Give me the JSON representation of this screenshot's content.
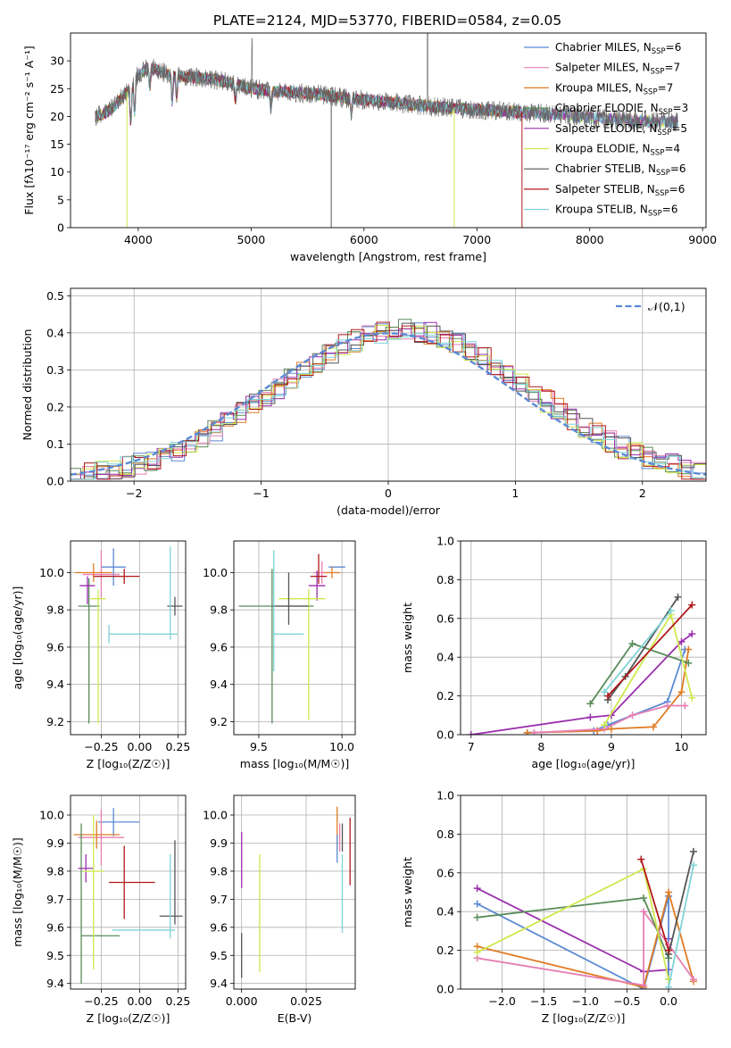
{
  "colors": {
    "ChM": "#5b8ad4",
    "SaM": "#e57fb3",
    "KrM": "#e07b24",
    "ChE": "#5a8c5a",
    "SaE": "#9b2fae",
    "KrE": "#cfe84d",
    "ChS": "#555555",
    "SaS": "#b0181c",
    "KrS": "#7fd3d8"
  },
  "chart_data": [
    {
      "id": "spectrum",
      "type": "line",
      "title": "PLATE=2124, MJD=53770, FIBERID=0584, z=0.05",
      "xlabel": "wavelength [Angstrom, rest frame]",
      "ylabel": "Flux [fλ10⁻¹⁷ erg cm⁻² s⁻¹ A⁻¹]",
      "xlim": [
        3400,
        9030
      ],
      "ylim": [
        0,
        35
      ],
      "xticks": [
        "4000",
        "5000",
        "6000",
        "7000",
        "8000",
        "9000"
      ],
      "yticks": [
        "0",
        "5",
        "10",
        "15",
        "20",
        "25",
        "30"
      ],
      "legend_position": "upper-right",
      "legend": [
        {
          "key": "ChM",
          "label": "Chabrier MILES, N",
          "sub": "SSP",
          "val": "=6"
        },
        {
          "key": "SaM",
          "label": "Salpeter MILES, N",
          "sub": "SSP",
          "val": "=7"
        },
        {
          "key": "KrM",
          "label": "Kroupa MILES, N",
          "sub": "SSP",
          "val": "=7"
        },
        {
          "key": "ChE",
          "label": "Chabrier ELODIE, N",
          "sub": "SSP",
          "val": "=3"
        },
        {
          "key": "SaE",
          "label": "Salpeter ELODIE, N",
          "sub": "SSP",
          "val": "=5"
        },
        {
          "key": "KrE",
          "label": "Kroupa ELODIE, N",
          "sub": "SSP",
          "val": "=4"
        },
        {
          "key": "ChS",
          "label": "Chabrier STELIB, N",
          "sub": "SSP",
          "val": "=6"
        },
        {
          "key": "SaS",
          "label": "Salpeter STELIB, N",
          "sub": "SSP",
          "val": "=6"
        },
        {
          "key": "KrS",
          "label": "Kroupa STELIB, N",
          "sub": "SSP",
          "val": "=6"
        }
      ],
      "continuum": [
        [
          3620,
          20
        ],
        [
          3700,
          20.5
        ],
        [
          3800,
          22
        ],
        [
          3900,
          24.5
        ],
        [
          4000,
          27.5
        ],
        [
          4100,
          29
        ],
        [
          4200,
          28
        ],
        [
          4400,
          27.2
        ],
        [
          4600,
          26.8
        ],
        [
          4800,
          26.2
        ],
        [
          5000,
          25
        ],
        [
          5200,
          24.5
        ],
        [
          5400,
          24.3
        ],
        [
          5600,
          24
        ],
        [
          5800,
          23.4
        ],
        [
          6000,
          23
        ],
        [
          6200,
          22.6
        ],
        [
          6400,
          22.2
        ],
        [
          6600,
          21.8
        ],
        [
          6800,
          21.5
        ],
        [
          7000,
          21.2
        ],
        [
          7200,
          21
        ],
        [
          7400,
          20.7
        ],
        [
          7600,
          20.5
        ],
        [
          7800,
          20.2
        ],
        [
          8000,
          19.8
        ],
        [
          8200,
          19.5
        ],
        [
          8400,
          19.2
        ],
        [
          8600,
          19
        ],
        [
          8780,
          19
        ]
      ],
      "drops": [
        {
          "key": "KrE",
          "x": 3900,
          "y": 0
        },
        {
          "key": "ChS",
          "x": 5710,
          "y": 0
        },
        {
          "key": "KrE",
          "x": 6800,
          "y": 0
        },
        {
          "key": "SaS",
          "x": 7400,
          "y": 0
        }
      ]
    },
    {
      "id": "residual-hist",
      "type": "histogram",
      "xlabel": "(data-model)/error",
      "ylabel": "Normed distribution",
      "xlim": [
        -2.5,
        2.5
      ],
      "ylim": [
        0,
        0.52
      ],
      "xticks": [
        "−2",
        "−1",
        "0",
        "1",
        "2"
      ],
      "yticks": [
        "0.0",
        "0.1",
        "0.2",
        "0.3",
        "0.4",
        "0.5"
      ],
      "grid": true,
      "legend_position": "upper-right",
      "legend": [
        {
          "label": "𝒩(0,1)",
          "style": "dashed",
          "color": "#5b8ad4"
        }
      ]
    },
    {
      "id": "age-vs-Z",
      "type": "errorbar",
      "xlabel": "Z [log₁₀(Z/Z☉)]",
      "ylabel": "age  [log₁₀(age/yr)]",
      "xlim": [
        -0.45,
        0.3
      ],
      "ylim": [
        9.13,
        10.17
      ],
      "xticks": [
        "−0.25",
        "0.00",
        "0.25"
      ],
      "yticks": [
        "9.2",
        "9.4",
        "9.6",
        "9.8",
        "10.0"
      ],
      "grid": true,
      "points": [
        {
          "key": "ChM",
          "x": -0.17,
          "y": 10.03,
          "xerr": [
            0.08,
            0.08
          ],
          "yerr": [
            0.1,
            0.1
          ]
        },
        {
          "key": "SaM",
          "x": -0.25,
          "y": 9.99,
          "xerr": [
            0.12,
            0.12
          ],
          "yerr": [
            0.13,
            0.13
          ]
        },
        {
          "key": "KrM",
          "x": -0.3,
          "y": 10.0,
          "xerr": [
            0.12,
            0.12
          ],
          "yerr": [
            0.05,
            0.05
          ]
        },
        {
          "key": "ChE",
          "x": -0.33,
          "y": 9.82,
          "xerr": [
            0.07,
            0.07
          ],
          "yerr": [
            0.63,
            0.15
          ]
        },
        {
          "key": "SaE",
          "x": -0.34,
          "y": 9.93,
          "xerr": [
            0.05,
            0.05
          ],
          "yerr": [
            0.1,
            0.05
          ]
        },
        {
          "key": "KrE",
          "x": -0.27,
          "y": 9.86,
          "xerr": [
            0.05,
            0.05
          ],
          "yerr": [
            0.67,
            0.05
          ]
        },
        {
          "key": "ChS",
          "x": 0.23,
          "y": 9.82,
          "xerr": [
            0.05,
            0.05
          ],
          "yerr": [
            0.05,
            0.05
          ]
        },
        {
          "key": "SaS",
          "x": -0.1,
          "y": 9.98,
          "xerr": [
            0.2,
            0.1
          ],
          "yerr": [
            0.04,
            0.04
          ]
        },
        {
          "key": "KrS",
          "x": -0.2,
          "y": 9.67,
          "xerr": [
            0.0,
            0.45
          ],
          "yerr": [
            0.05,
            0.05
          ]
        },
        {
          "key": "KrS",
          "x": 0.2,
          "y": 9.9,
          "xerr": [
            0,
            0
          ],
          "yerr": [
            0.26,
            0.24
          ]
        }
      ]
    },
    {
      "id": "age-vs-mass",
      "type": "errorbar",
      "xlabel": "mass [log₁₀(M/M☉)]",
      "ylabel": "",
      "xlim": [
        9.35,
        10.08
      ],
      "ylim": [
        9.13,
        10.17
      ],
      "xticks": [
        "9.5",
        "10.0"
      ],
      "yticks": [
        "9.2",
        "9.4",
        "9.6",
        "9.8",
        "10.0"
      ],
      "grid": true,
      "points": [
        {
          "key": "ChM",
          "x": 9.97,
          "y": 10.03,
          "xerr": [
            0.05,
            0.05
          ],
          "yerr": [
            0,
            0
          ]
        },
        {
          "key": "SaM",
          "x": 9.88,
          "y": 10.0,
          "xerr": [
            0.05,
            0.05
          ],
          "yerr": [
            0.06,
            0.06
          ]
        },
        {
          "key": "KrM",
          "x": 9.94,
          "y": 10.0,
          "xerr": [
            0.05,
            0.05
          ],
          "yerr": [
            0.03,
            0.03
          ]
        },
        {
          "key": "ChE",
          "x": 9.58,
          "y": 9.82,
          "xerr": [
            0.2,
            0.25
          ],
          "yerr": [
            0.63,
            0.2
          ]
        },
        {
          "key": "SaE",
          "x": 9.85,
          "y": 9.93,
          "xerr": [
            0.05,
            0.05
          ],
          "yerr": [
            0.08,
            0.08
          ]
        },
        {
          "key": "KrE",
          "x": 9.8,
          "y": 9.86,
          "xerr": [
            0.18,
            0.1
          ],
          "yerr": [
            0.65,
            0.05
          ]
        },
        {
          "key": "ChS",
          "x": 9.68,
          "y": 9.82,
          "xerr": [
            0.1,
            0.12
          ],
          "yerr": [
            0.1,
            0.18
          ]
        },
        {
          "key": "SaS",
          "x": 9.86,
          "y": 9.98,
          "xerr": [
            0.05,
            0.05
          ],
          "yerr": [
            0.04,
            0.12
          ]
        },
        {
          "key": "KrS",
          "x": 9.59,
          "y": 9.67,
          "xerr": [
            0.0,
            0.18
          ],
          "yerr": [
            0.2,
            0.45
          ]
        }
      ]
    },
    {
      "id": "massweight-vs-age",
      "type": "line",
      "xlabel": "age  [log₁₀(age/yr)]",
      "ylabel": "mass weight",
      "xlim": [
        6.85,
        10.35
      ],
      "ylim": [
        0,
        1
      ],
      "xticks": [
        "7",
        "8",
        "9",
        "10"
      ],
      "yticks": [
        "0.0",
        "0.2",
        "0.4",
        "0.6",
        "0.8",
        "1.0"
      ],
      "grid": true,
      "series": [
        {
          "key": "SaE",
          "x": [
            7.0,
            8.7,
            9.0,
            10.0,
            10.15
          ],
          "y": [
            0.0,
            0.09,
            0.1,
            0.48,
            0.52
          ]
        },
        {
          "key": "ChM",
          "x": [
            7.8,
            8.75,
            8.95,
            9.8,
            10.05
          ],
          "y": [
            0.01,
            0.02,
            0.05,
            0.17,
            0.44
          ]
        },
        {
          "key": "KrM",
          "x": [
            7.8,
            8.8,
            9.0,
            9.6,
            10.0,
            10.1
          ],
          "y": [
            0.01,
            0.02,
            0.03,
            0.04,
            0.22,
            0.44
          ]
        },
        {
          "key": "SaM",
          "x": [
            7.9,
            8.9,
            9.3,
            9.8,
            10.05
          ],
          "y": [
            0.01,
            0.03,
            0.1,
            0.15,
            0.15
          ]
        },
        {
          "key": "ChE",
          "x": [
            8.7,
            9.3,
            10.1
          ],
          "y": [
            0.16,
            0.47,
            0.37
          ]
        },
        {
          "key": "KrE",
          "x": [
            8.9,
            9.85,
            10.15
          ],
          "y": [
            0.05,
            0.62,
            0.19
          ]
        },
        {
          "key": "ChS",
          "x": [
            8.95,
            9.2,
            9.95
          ],
          "y": [
            0.18,
            0.3,
            0.71
          ]
        },
        {
          "key": "SaS",
          "x": [
            8.95,
            10.15
          ],
          "y": [
            0.2,
            0.67
          ]
        },
        {
          "key": "KrS",
          "x": [
            8.9,
            9.85
          ],
          "y": [
            0.22,
            0.64
          ]
        }
      ]
    },
    {
      "id": "mass-vs-Z",
      "type": "errorbar",
      "xlabel": "Z [log₁₀(Z/Z☉)]",
      "ylabel": "mass [log₁₀(M/M☉)]",
      "xlim": [
        -0.45,
        0.3
      ],
      "ylim": [
        9.38,
        10.07
      ],
      "xticks": [
        "−0.25",
        "0.00",
        "0.25"
      ],
      "yticks": [
        "9.4",
        "9.5",
        "9.6",
        "9.7",
        "9.8",
        "9.9",
        "10.0"
      ],
      "grid": true,
      "points": [
        {
          "key": "ChM",
          "x": -0.17,
          "y": 9.975,
          "xerr": [
            0.1,
            0.17
          ],
          "yerr": [
            0.05,
            0.05
          ]
        },
        {
          "key": "SaM",
          "x": -0.25,
          "y": 9.92,
          "xerr": [
            0.15,
            0.15
          ],
          "yerr": [
            0.1,
            0.1
          ]
        },
        {
          "key": "KrM",
          "x": -0.28,
          "y": 9.93,
          "xerr": [
            0.15,
            0.15
          ],
          "yerr": [
            0.05,
            0.05
          ]
        },
        {
          "key": "ChE",
          "x": -0.38,
          "y": 9.57,
          "xerr": [
            0.0,
            0.25
          ],
          "yerr": [
            0.17,
            0.4
          ]
        },
        {
          "key": "SaE",
          "x": -0.35,
          "y": 9.81,
          "xerr": [
            0.05,
            0.05
          ],
          "yerr": [
            0.05,
            0.05
          ]
        },
        {
          "key": "KrE",
          "x": -0.3,
          "y": 9.8,
          "xerr": [
            0.07,
            0.07
          ],
          "yerr": [
            0.35,
            0.2
          ]
        },
        {
          "key": "ChS",
          "x": 0.23,
          "y": 9.64,
          "xerr": [
            0.1,
            0.05
          ],
          "yerr": [
            0.03,
            0.27
          ]
        },
        {
          "key": "SaS",
          "x": -0.1,
          "y": 9.76,
          "xerr": [
            0.1,
            0.2
          ],
          "yerr": [
            0.13,
            0.13
          ]
        },
        {
          "key": "KrS",
          "x": 0.2,
          "y": 9.59,
          "xerr": [
            0.38,
            0.03
          ],
          "yerr": [
            0.03,
            0.27
          ]
        }
      ]
    },
    {
      "id": "mass-vs-EBV",
      "type": "errorbar",
      "xlabel": "E(B-V)",
      "ylabel": "",
      "xlim": [
        -0.003,
        0.044
      ],
      "ylim": [
        9.38,
        10.07
      ],
      "xticks": [
        "0.000",
        "0.025"
      ],
      "yticks": [
        "9.4",
        "9.5",
        "9.6",
        "9.7",
        "9.8",
        "9.9",
        "10.0"
      ],
      "grid": true,
      "points": [
        {
          "key": "SaE",
          "x": 0.0,
          "y": 9.84,
          "xerr": [
            0,
            0
          ],
          "yerr": [
            0.1,
            0.1
          ]
        },
        {
          "key": "KrE",
          "x": 0.007,
          "y": 9.65,
          "xerr": [
            0,
            0
          ],
          "yerr": [
            0.21,
            0.21
          ]
        },
        {
          "key": "ChS",
          "x": 0.0,
          "y": 9.5,
          "xerr": [
            0,
            0
          ],
          "yerr": [
            0.08,
            0.08
          ]
        },
        {
          "key": "KrM",
          "x": 0.037,
          "y": 9.95,
          "xerr": [
            0,
            0
          ],
          "yerr": [
            0.08,
            0.08
          ]
        },
        {
          "key": "ChM",
          "x": 0.037,
          "y": 9.88,
          "xerr": [
            0,
            0
          ],
          "yerr": [
            0.05,
            0.05
          ]
        },
        {
          "key": "SaM",
          "x": 0.038,
          "y": 9.92,
          "xerr": [
            0,
            0
          ],
          "yerr": [
            0.05,
            0.05
          ]
        },
        {
          "key": "ChS",
          "x": 0.039,
          "y": 9.92,
          "xerr": [
            0,
            0
          ],
          "yerr": [
            0.05,
            0.05
          ]
        },
        {
          "key": "KrS",
          "x": 0.039,
          "y": 9.72,
          "xerr": [
            0,
            0
          ],
          "yerr": [
            0.14,
            0.14
          ]
        },
        {
          "key": "SaS",
          "x": 0.042,
          "y": 9.87,
          "xerr": [
            0,
            0
          ],
          "yerr": [
            0.12,
            0.12
          ]
        }
      ]
    },
    {
      "id": "massweight-vs-Z",
      "type": "line",
      "xlabel": "Z [log₁₀(Z/Z☉)]",
      "ylabel": "mass weight",
      "xlim": [
        -2.5,
        0.45
      ],
      "ylim": [
        0,
        1
      ],
      "xticks": [
        "−2.0",
        "−1.5",
        "−1.0",
        "−0.5",
        "0.0"
      ],
      "yticks": [
        "0.0",
        "0.2",
        "0.4",
        "0.6",
        "0.8",
        "1.0"
      ],
      "grid": true,
      "series": [
        {
          "key": "SaE",
          "x": [
            -2.3,
            -0.3,
            0.0,
            0.0
          ],
          "y": [
            0.52,
            0.09,
            0.1,
            0.26
          ]
        },
        {
          "key": "ChM",
          "x": [
            -2.3,
            -0.3,
            0.0,
            0.0
          ],
          "y": [
            0.44,
            0.0,
            0.48,
            0.05
          ]
        },
        {
          "key": "KrM",
          "x": [
            -2.3,
            -0.3,
            0.0,
            0.3
          ],
          "y": [
            0.22,
            0.01,
            0.5,
            0.04
          ]
        },
        {
          "key": "SaM",
          "x": [
            -2.3,
            -0.3,
            -0.3,
            0.0,
            0.3
          ],
          "y": [
            0.16,
            0.02,
            0.4,
            0.23,
            0.05
          ]
        },
        {
          "key": "ChE",
          "x": [
            -2.3,
            -0.3,
            0.0
          ],
          "y": [
            0.37,
            0.47,
            0.16
          ]
        },
        {
          "key": "KrE",
          "x": [
            -2.3,
            -0.3,
            0.0
          ],
          "y": [
            0.19,
            0.62,
            0.05
          ]
        },
        {
          "key": "ChS",
          "x": [
            0.0,
            0.3
          ],
          "y": [
            0.18,
            0.71
          ]
        },
        {
          "key": "SaS",
          "x": [
            -0.33,
            0.0
          ],
          "y": [
            0.67,
            0.2
          ]
        },
        {
          "key": "KrS",
          "x": [
            0.0,
            0.3
          ],
          "y": [
            0.01,
            0.64
          ]
        }
      ]
    }
  ]
}
